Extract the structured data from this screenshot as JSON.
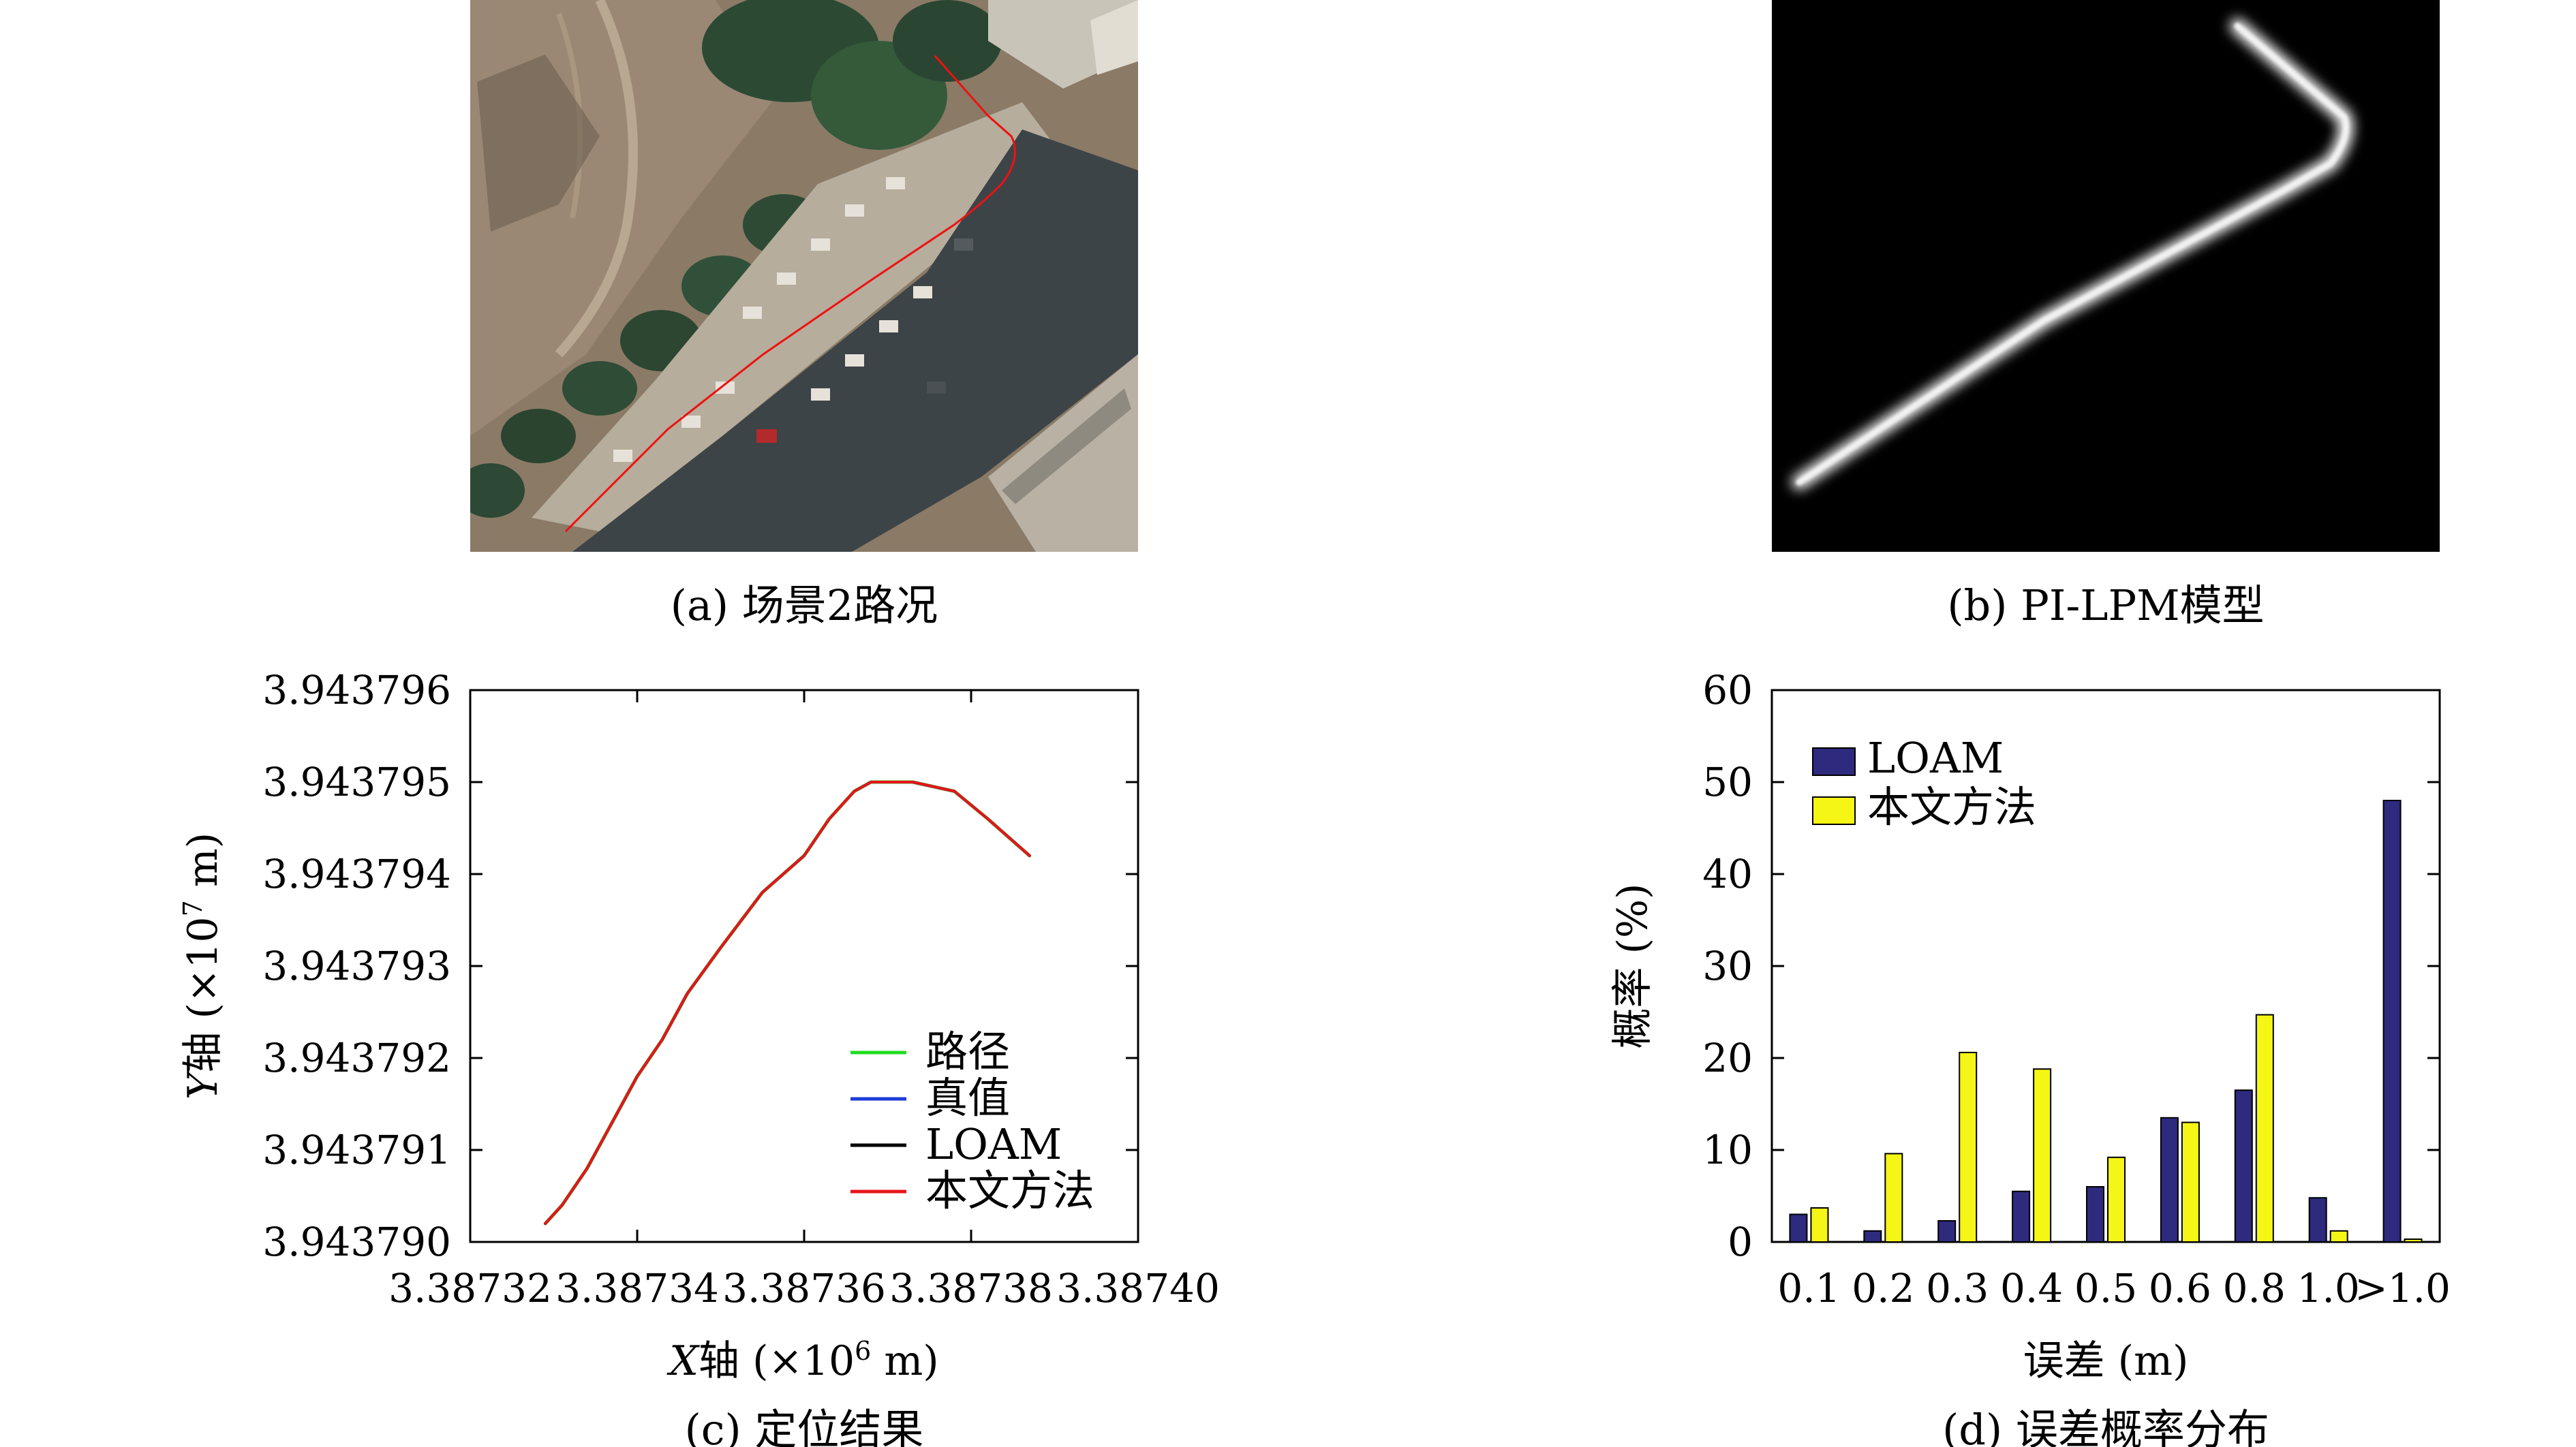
{
  "captions": {
    "a": "(a) 场景2路况",
    "b": "(b) PI-LPM模型",
    "c": "(c) 定位结果",
    "d": "(d) 误差概率分布"
  },
  "chart_data": [
    {
      "type": "image",
      "panel": "a",
      "content": "aerial photo: parking lot with trees, buildings and a red path drawn along the road"
    },
    {
      "type": "image",
      "panel": "b",
      "content": "black background with a blurred white path line matching the road trajectory"
    },
    {
      "type": "line",
      "panel": "c",
      "xlabel_var": "X",
      "xlabel_text": "轴 (×10",
      "xlabel_exp": "6",
      "xlabel_unit": " m)",
      "ylabel_var": "Y",
      "ylabel_text": "轴 (×10",
      "ylabel_exp": "7",
      "ylabel_unit": " m)",
      "xlim": [
        3.38732,
        3.3874
      ],
      "ylim": [
        3.94379,
        3.943796
      ],
      "xticks": [
        "3.38732",
        "3.38734",
        "3.38736",
        "3.38738",
        "3.38740"
      ],
      "yticks": [
        "3.943790",
        "3.943791",
        "3.943792",
        "3.943793",
        "3.943794",
        "3.943795",
        "3.943796"
      ],
      "legend_position": "bottom-right",
      "series": [
        {
          "name": "路径",
          "color": "#22dd22",
          "x": [
            3.387329,
            3.387331,
            3.387334,
            3.387337,
            3.38734,
            3.387343,
            3.387346,
            3.38735,
            3.387355,
            3.38736,
            3.387363,
            3.387366,
            3.387368,
            3.387373,
            3.387378,
            3.387382,
            3.387387
          ],
          "y": [
            3.9437902,
            3.9437904,
            3.9437908,
            3.9437913,
            3.9437918,
            3.9437922,
            3.9437927,
            3.9437932,
            3.9437938,
            3.9437942,
            3.9437946,
            3.9437949,
            3.943795,
            3.943795,
            3.9437949,
            3.9437946,
            3.9437942
          ]
        },
        {
          "name": "真值",
          "color": "#1c3bd6",
          "x": [
            3.387329,
            3.387331,
            3.387334,
            3.387337,
            3.38734,
            3.387343,
            3.387346,
            3.38735,
            3.387355,
            3.38736,
            3.387363,
            3.387366,
            3.387368,
            3.387373,
            3.387378,
            3.387382,
            3.387387
          ],
          "y": [
            3.9437902,
            3.9437904,
            3.9437908,
            3.9437913,
            3.9437918,
            3.9437922,
            3.9437927,
            3.9437932,
            3.9437938,
            3.9437942,
            3.9437946,
            3.9437949,
            3.943795,
            3.943795,
            3.9437949,
            3.9437946,
            3.9437942
          ]
        },
        {
          "name": "LOAM",
          "color": "#000000",
          "x": [
            3.387329,
            3.387331,
            3.387334,
            3.387337,
            3.38734,
            3.387343,
            3.387346,
            3.38735,
            3.387355,
            3.38736,
            3.387363,
            3.387366,
            3.387368,
            3.387373,
            3.387378,
            3.387382,
            3.387387
          ],
          "y": [
            3.9437902,
            3.9437904,
            3.9437908,
            3.9437913,
            3.9437918,
            3.9437922,
            3.9437927,
            3.9437932,
            3.9437938,
            3.9437942,
            3.9437946,
            3.9437949,
            3.943795,
            3.943795,
            3.9437949,
            3.9437946,
            3.9437942
          ]
        },
        {
          "name": "本文方法",
          "color": "#e8141c",
          "x": [
            3.387329,
            3.387331,
            3.387334,
            3.387337,
            3.38734,
            3.387343,
            3.387346,
            3.38735,
            3.387355,
            3.38736,
            3.387363,
            3.387366,
            3.387368,
            3.387373,
            3.387378,
            3.387382,
            3.387387
          ],
          "y": [
            3.9437902,
            3.9437904,
            3.9437908,
            3.9437913,
            3.9437918,
            3.9437922,
            3.9437927,
            3.9437932,
            3.9437938,
            3.9437942,
            3.9437946,
            3.9437949,
            3.943795,
            3.943795,
            3.9437949,
            3.9437946,
            3.9437942
          ]
        }
      ]
    },
    {
      "type": "bar",
      "panel": "d",
      "xlabel": "误差 (m)",
      "ylabel": "概率 (%)",
      "ylim": [
        0,
        60
      ],
      "yticks": [
        "0",
        "10",
        "20",
        "30",
        "40",
        "50",
        "60"
      ],
      "categories": [
        "0.1",
        "0.2",
        "0.3",
        "0.4",
        "0.5",
        "0.6",
        "0.8",
        "1.0",
        ">1.0"
      ],
      "legend_position": "top-left",
      "series": [
        {
          "name": "LOAM",
          "color": "#2e2a7e",
          "values": [
            3,
            1.2,
            2.3,
            5.5,
            6,
            13.5,
            16.5,
            4.8,
            48
          ]
        },
        {
          "name": "本文方法",
          "color": "#f5f516",
          "values": [
            3.7,
            9.6,
            20.6,
            18.8,
            9.2,
            13,
            24.7,
            1.2,
            0.3
          ]
        }
      ]
    }
  ]
}
